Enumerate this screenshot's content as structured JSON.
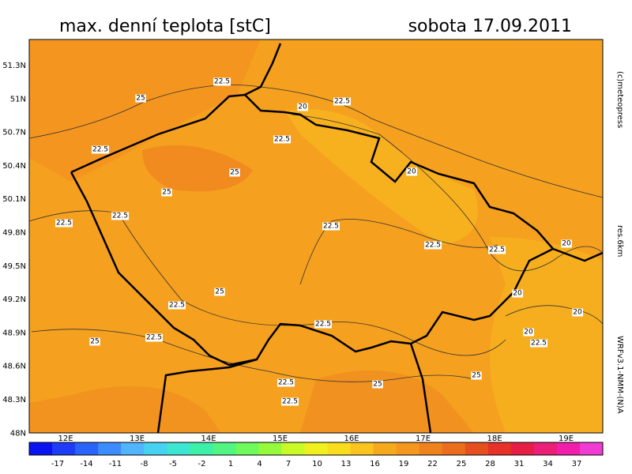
{
  "header": {
    "title": "max. denní teplota [stC]",
    "date": "sobota 17.09.2011"
  },
  "side": {
    "copyright": "(c)meteopress",
    "resolution": "res.6km",
    "model": "WRFv3.1-NMM-(N)A"
  },
  "lat_labels": [
    "51.3N",
    "51N",
    "50.7N",
    "50.4N",
    "50.1N",
    "49.8N",
    "49.5N",
    "49.2N",
    "48.9N",
    "48.6N",
    "48.3N",
    "48N"
  ],
  "lon_labels": [
    "12E",
    "13E",
    "14E",
    "15E",
    "16E",
    "17E",
    "18E",
    "19E"
  ],
  "colorbar": {
    "labels": [
      -17,
      -14,
      -11,
      -8,
      -5,
      -2,
      1,
      4,
      7,
      10,
      13,
      16,
      19,
      22,
      25,
      28,
      31,
      34,
      37
    ],
    "colors": [
      "#0a14f0",
      "#1e3cf5",
      "#2864fa",
      "#3c8cff",
      "#50b4ff",
      "#46d2f0",
      "#3ce6d2",
      "#3cf0aa",
      "#50f582",
      "#6efa5a",
      "#96fa3c",
      "#c8fa28",
      "#f0f01e",
      "#fadc1e",
      "#fac31e",
      "#f5aa1e",
      "#f5961e",
      "#f0821e",
      "#eb6e1e",
      "#e6501e",
      "#e63228",
      "#e61e46",
      "#eb1e78",
      "#f01eaa",
      "#f03cd2"
    ]
  },
  "contour_labels": [
    "22.5",
    "25",
    "20",
    "22.5",
    "22.5",
    "22.5",
    "25",
    "20",
    "25",
    "22.5",
    "22.5",
    "22.5",
    "22.5",
    "22.5",
    "20",
    "20",
    "25",
    "22.5",
    "22.5",
    "20",
    "25",
    "22.5",
    "20",
    "22.5",
    "25",
    "22.5",
    "25",
    "22.5"
  ]
}
